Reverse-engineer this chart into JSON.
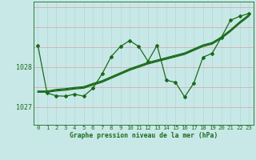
{
  "bg_color": "#c8e8e8",
  "grid_color_v": "#b0d8d8",
  "grid_color_h": "#e8b0b0",
  "line_color": "#1a6b1a",
  "xlim": [
    -0.5,
    23.5
  ],
  "ylim": [
    1026.55,
    1029.65
  ],
  "yticks": [
    1027.0,
    1028.0
  ],
  "xticks": [
    0,
    1,
    2,
    3,
    4,
    5,
    6,
    7,
    8,
    9,
    10,
    11,
    12,
    13,
    14,
    15,
    16,
    17,
    18,
    19,
    20,
    21,
    22,
    23
  ],
  "xlabel": "Graphe pression niveau de la mer (hPa)",
  "line_jagged": [
    1028.55,
    1027.35,
    1027.28,
    1027.27,
    1027.32,
    1027.27,
    1027.47,
    1027.83,
    1028.27,
    1028.52,
    1028.67,
    1028.52,
    1028.15,
    1028.55,
    1027.67,
    1027.62,
    1027.25,
    1027.6,
    1028.25,
    1028.35,
    1028.75,
    1029.18,
    1029.28,
    1029.35
  ],
  "line_smooth1": [
    1027.37,
    1027.37,
    1027.4,
    1027.42,
    1027.45,
    1027.47,
    1027.55,
    1027.62,
    1027.72,
    1027.82,
    1027.92,
    1028.0,
    1028.08,
    1028.14,
    1028.2,
    1028.26,
    1028.32,
    1028.42,
    1028.52,
    1028.58,
    1028.72,
    1028.9,
    1029.1,
    1029.28
  ],
  "line_smooth2": [
    1027.38,
    1027.38,
    1027.42,
    1027.44,
    1027.47,
    1027.49,
    1027.57,
    1027.64,
    1027.74,
    1027.84,
    1027.94,
    1028.02,
    1028.1,
    1028.16,
    1028.22,
    1028.28,
    1028.34,
    1028.44,
    1028.54,
    1028.6,
    1028.74,
    1028.92,
    1029.12,
    1029.3
  ],
  "line_smooth3": [
    1027.4,
    1027.4,
    1027.44,
    1027.46,
    1027.49,
    1027.51,
    1027.59,
    1027.66,
    1027.76,
    1027.86,
    1027.96,
    1028.04,
    1028.12,
    1028.18,
    1028.24,
    1028.3,
    1028.36,
    1028.46,
    1028.56,
    1028.62,
    1028.76,
    1028.94,
    1029.14,
    1029.32
  ]
}
